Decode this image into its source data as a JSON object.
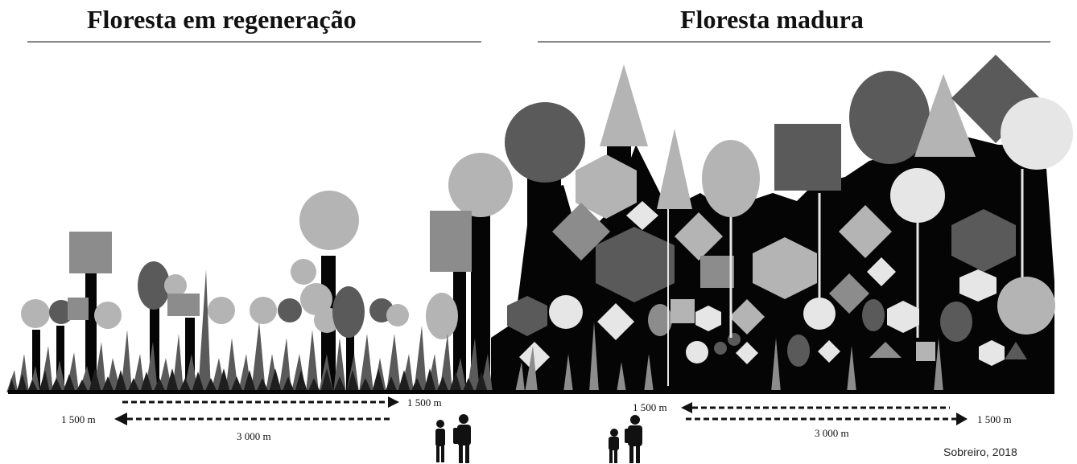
{
  "titles": {
    "left": "Floresta em regeneração",
    "right": "Floresta madura"
  },
  "distances": {
    "left_top": "1 500 m",
    "left_short": "1 500 m",
    "left_total": "3 000 m",
    "right_top": "1 500 m",
    "right_short": "1 500 m",
    "right_total": "3 000 m"
  },
  "credit": "Sobreiro, 2018",
  "colors": {
    "trunk": "#050505",
    "dark_gray": "#5a5a5a",
    "mid_gray": "#8c8c8c",
    "light_gray": "#b4b4b4",
    "pale_gray": "#e6e6e6"
  }
}
